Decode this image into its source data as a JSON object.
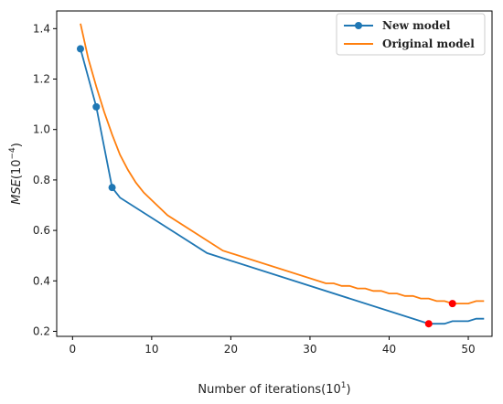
{
  "chart_data": {
    "type": "line",
    "title": "",
    "xlabel": "Number of iterations(10",
    "xlabel_sup": "1",
    "xlabel_close": ")",
    "ylabel": "MSE",
    "ylabel_unit": "(10",
    "ylabel_sup": "−4",
    "ylabel_close": ")",
    "xlim": [
      -2,
      53
    ],
    "ylim": [
      0.18,
      1.47
    ],
    "xticks": [
      0,
      10,
      20,
      30,
      40,
      50
    ],
    "yticks": [
      0.2,
      0.4,
      0.6,
      0.8,
      1.0,
      1.2,
      1.4
    ],
    "ytick_labels": [
      "0.2",
      "0.4",
      "0.6",
      "0.8",
      "1.0",
      "1.2",
      "1.4"
    ],
    "legend_position": "top-right",
    "grid": false,
    "series": [
      {
        "name": "New model",
        "color": "#1f77b4",
        "marker_x": [
          1,
          3,
          5
        ],
        "x": [
          1,
          3,
          5,
          6,
          17,
          44,
          45,
          46,
          47,
          48,
          49,
          50,
          51,
          52
        ],
        "y": [
          1.32,
          1.09,
          0.77,
          0.73,
          0.51,
          0.24,
          0.23,
          0.23,
          0.23,
          0.24,
          0.24,
          0.24,
          0.25,
          0.25
        ],
        "highlight": {
          "x": 45,
          "y": 0.23
        }
      },
      {
        "name": "Original model",
        "color": "#ff7f0e",
        "x": [
          1,
          2,
          3,
          4,
          5,
          6,
          7,
          8,
          9,
          10,
          12,
          19,
          32,
          33,
          34,
          35,
          36,
          37,
          38,
          39,
          40,
          41,
          42,
          43,
          44,
          45,
          46,
          47,
          48,
          49,
          50,
          51,
          52
        ],
        "y": [
          1.42,
          1.28,
          1.17,
          1.07,
          0.98,
          0.9,
          0.84,
          0.79,
          0.75,
          0.72,
          0.66,
          0.52,
          0.39,
          0.39,
          0.38,
          0.38,
          0.37,
          0.37,
          0.36,
          0.36,
          0.35,
          0.35,
          0.34,
          0.34,
          0.33,
          0.33,
          0.32,
          0.32,
          0.31,
          0.31,
          0.31,
          0.32,
          0.32
        ],
        "highlight": {
          "x": 48,
          "y": 0.31
        }
      }
    ],
    "highlight_color": "#ff0000"
  }
}
